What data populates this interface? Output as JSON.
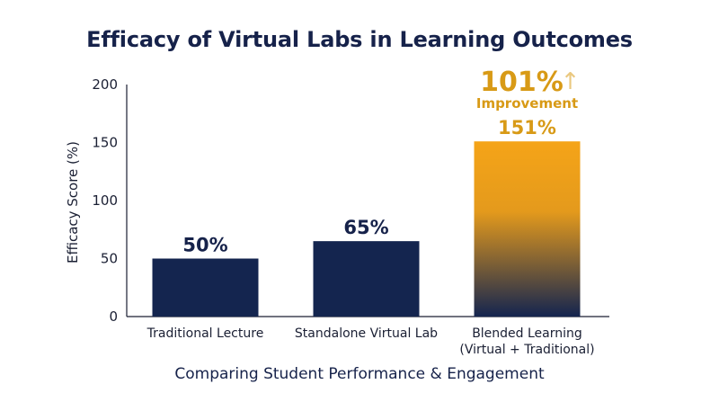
{
  "chart_data": {
    "type": "bar",
    "title": "Efficacy of Virtual Labs in Learning Outcomes",
    "ylabel": "Efficacy Score (%)",
    "xlabel": "Comparing Student Performance & Engagement",
    "ylim": [
      0,
      200
    ],
    "yticks": [
      0,
      50,
      100,
      150,
      200
    ],
    "categories": [
      [
        "Traditional Lecture"
      ],
      [
        "Standalone Virtual Lab"
      ],
      [
        "Blended Learning",
        "(Virtual + Traditional)"
      ]
    ],
    "values": [
      50,
      65,
      151
    ],
    "data_labels": [
      "50%",
      "65%",
      "151%"
    ],
    "highlight_index": 2,
    "annotation": {
      "value": "101%",
      "arrow": "↑",
      "label": "Improvement"
    },
    "colors": {
      "bar": "#14254f",
      "highlight_top": "#f5a418",
      "highlight_bottom": "#14254f",
      "accent": "#d89a16"
    },
    "grid": false
  }
}
